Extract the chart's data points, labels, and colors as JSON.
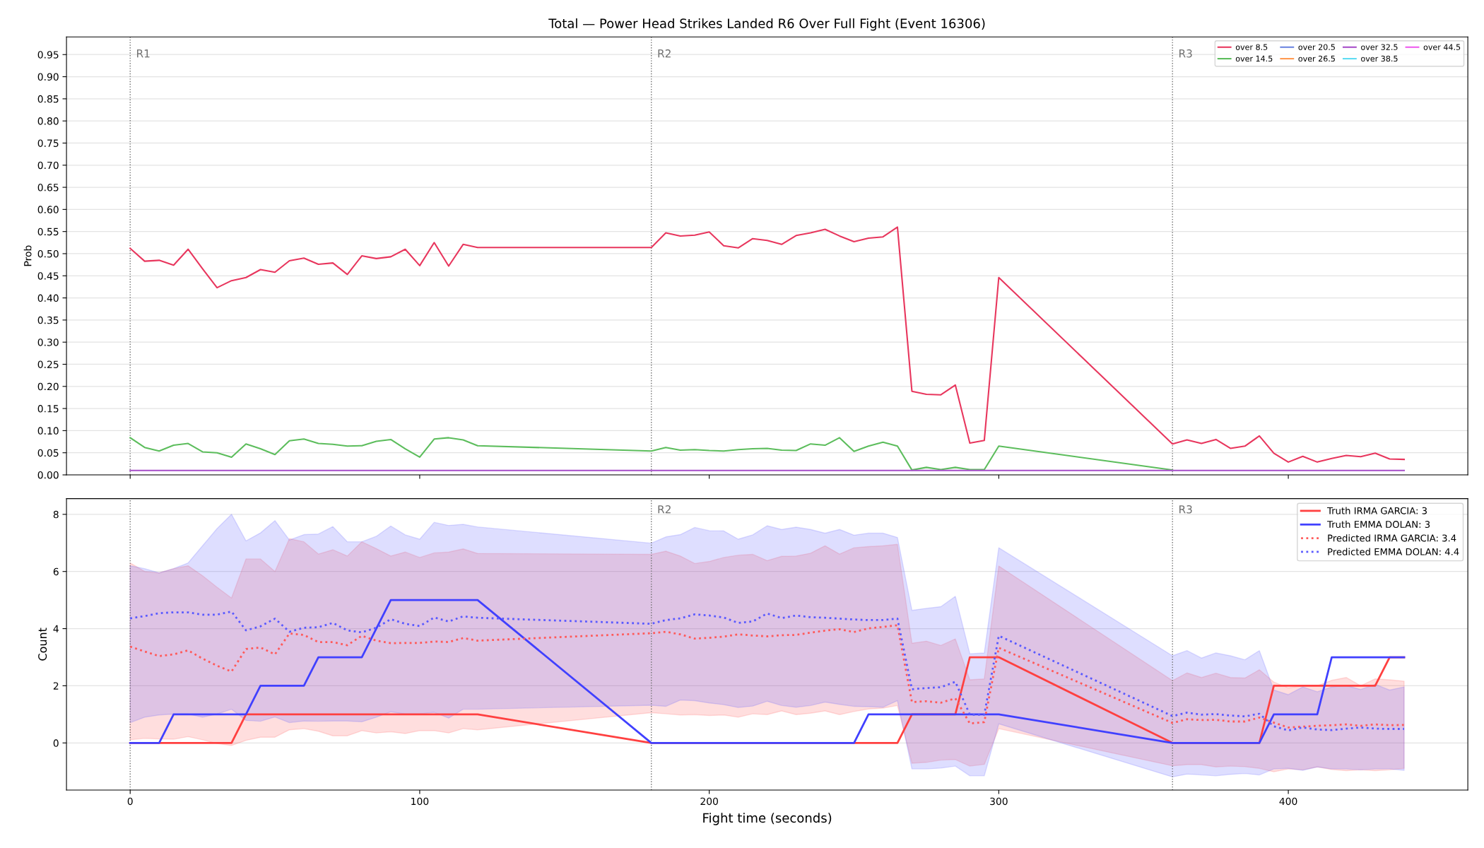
{
  "chart_data": [
    {
      "type": "line",
      "title": "Total — Power Head Strikes Landed R6 Over Full Fight (Event 16306)",
      "ylabel": "Prob",
      "x": [
        0,
        5,
        10,
        15,
        20,
        25,
        30,
        35,
        40,
        45,
        50,
        55,
        60,
        65,
        70,
        75,
        80,
        85,
        90,
        95,
        100,
        105,
        110,
        115,
        120,
        180,
        185,
        190,
        195,
        200,
        205,
        210,
        215,
        220,
        225,
        230,
        235,
        240,
        245,
        250,
        255,
        260,
        265,
        270,
        275,
        280,
        285,
        290,
        295,
        300,
        360,
        365,
        370,
        375,
        380,
        385,
        390,
        395,
        400,
        405,
        410,
        415,
        420,
        425,
        430,
        435,
        440
      ],
      "xlim": [
        -22,
        462
      ],
      "xticks": [
        0,
        100,
        200,
        300,
        400
      ],
      "ylim": [
        0,
        0.99
      ],
      "yticks": [
        {
          "value": 0.0,
          "label": "0.00"
        },
        {
          "value": 0.05,
          "label": "0.05"
        },
        {
          "value": 0.1,
          "label": "0.10"
        },
        {
          "value": 0.15,
          "label": "0.15"
        },
        {
          "value": 0.2,
          "label": "0.20"
        },
        {
          "value": 0.25,
          "label": "0.25"
        },
        {
          "value": 0.3,
          "label": "0.30"
        },
        {
          "value": 0.35,
          "label": "0.35"
        },
        {
          "value": 0.4,
          "label": "0.40"
        },
        {
          "value": 0.45,
          "label": "0.45"
        },
        {
          "value": 0.5,
          "label": "0.50"
        },
        {
          "value": 0.55,
          "label": "0.55"
        },
        {
          "value": 0.6,
          "label": "0.60"
        },
        {
          "value": 0.65,
          "label": "0.65"
        },
        {
          "value": 0.7,
          "label": "0.70"
        },
        {
          "value": 0.75,
          "label": "0.75"
        },
        {
          "value": 0.8,
          "label": "0.80"
        },
        {
          "value": 0.85,
          "label": "0.85"
        },
        {
          "value": 0.9,
          "label": "0.90"
        },
        {
          "value": 0.95,
          "label": "0.95"
        }
      ],
      "tick_labels": "y",
      "grid": "y",
      "legend": "top right",
      "series": [
        {
          "name": "over 8.5",
          "color": "#e8365d",
          "values": [
            0.512,
            0.483,
            0.485,
            0.474,
            0.51,
            0.466,
            0.423,
            0.439,
            0.446,
            0.464,
            0.458,
            0.484,
            0.49,
            0.476,
            0.479,
            0.453,
            0.495,
            0.489,
            0.493,
            0.51,
            0.473,
            0.525,
            0.472,
            0.521,
            0.514,
            0.514,
            0.547,
            0.54,
            0.542,
            0.549,
            0.518,
            0.513,
            0.534,
            0.53,
            0.521,
            0.541,
            0.547,
            0.555,
            0.54,
            0.527,
            0.535,
            0.538,
            0.56,
            0.189,
            0.182,
            0.181,
            0.203,
            0.072,
            0.078,
            0.446,
            0.07,
            0.079,
            0.071,
            0.08,
            0.06,
            0.065,
            0.088,
            0.049,
            0.029,
            0.042,
            0.029,
            0.037,
            0.044,
            0.041,
            0.049,
            0.036,
            0.035
          ]
        },
        {
          "name": "over 14.5",
          "color": "#5cbd5c",
          "values": [
            0.084,
            0.062,
            0.054,
            0.067,
            0.071,
            0.052,
            0.05,
            0.04,
            0.07,
            0.059,
            0.046,
            0.077,
            0.081,
            0.071,
            0.069,
            0.065,
            0.066,
            0.076,
            0.08,
            0.059,
            0.04,
            0.081,
            0.084,
            0.079,
            0.066,
            0.054,
            0.062,
            0.056,
            0.057,
            0.055,
            0.054,
            0.057,
            0.059,
            0.06,
            0.056,
            0.055,
            0.07,
            0.067,
            0.084,
            0.053,
            0.065,
            0.074,
            0.065,
            0.011,
            0.017,
            0.012,
            0.017,
            0.012,
            0.012,
            0.065,
            0.011,
            null,
            null,
            null,
            null,
            null,
            null,
            null,
            null,
            null,
            null,
            null,
            null,
            null,
            null,
            null,
            null
          ]
        },
        {
          "name": "over 20.5",
          "color": "#6a84e0",
          "values": [
            null,
            null,
            null,
            null,
            null,
            null,
            null,
            null,
            null,
            null,
            null,
            null,
            null,
            null,
            null,
            null,
            null,
            null,
            null,
            null,
            null,
            null,
            null,
            null,
            null,
            null,
            null,
            null,
            null,
            null,
            null,
            null,
            null,
            null,
            null,
            null,
            null,
            null,
            null,
            null,
            null,
            null,
            null,
            null,
            null,
            null,
            null,
            null,
            null,
            null,
            null,
            null,
            null,
            null,
            null,
            null,
            null,
            null,
            null,
            null,
            null,
            null,
            null,
            null,
            null,
            null,
            null
          ]
        },
        {
          "name": "over 26.5",
          "color": "#ff9a52",
          "values": [
            null,
            null,
            null,
            null,
            null,
            null,
            null,
            null,
            null,
            null,
            null,
            null,
            null,
            null,
            null,
            null,
            null,
            null,
            null,
            null,
            null,
            null,
            null,
            null,
            null,
            null,
            null,
            null,
            null,
            null,
            null,
            null,
            null,
            null,
            null,
            null,
            null,
            null,
            null,
            null,
            null,
            null,
            null,
            null,
            null,
            null,
            null,
            null,
            null,
            null,
            null,
            null,
            null,
            null,
            null,
            null,
            null,
            null,
            null,
            null,
            null,
            null,
            null,
            null,
            null,
            null,
            null
          ]
        },
        {
          "name": "over 32.5",
          "color": "#a64cc8",
          "values": [
            0.01,
            0.01,
            0.01,
            0.01,
            0.01,
            0.01,
            0.01,
            0.01,
            0.01,
            0.01,
            0.01,
            0.01,
            0.01,
            0.01,
            0.01,
            0.01,
            0.01,
            0.01,
            0.01,
            0.01,
            0.01,
            0.01,
            0.01,
            0.01,
            0.01,
            0.01,
            0.01,
            0.01,
            0.01,
            0.01,
            0.01,
            0.01,
            0.01,
            0.01,
            0.01,
            0.01,
            0.01,
            0.01,
            0.01,
            0.01,
            0.01,
            0.01,
            0.01,
            0.01,
            0.01,
            0.01,
            0.01,
            0.01,
            0.01,
            0.01,
            0.01,
            0.01,
            0.01,
            0.01,
            0.01,
            0.01,
            0.01,
            0.01,
            0.01,
            0.01,
            0.01,
            0.01,
            0.01,
            0.01,
            0.01,
            0.01,
            0.01
          ]
        },
        {
          "name": "over 38.5",
          "color": "#5fdcf2",
          "values": [
            null,
            null,
            null,
            null,
            null,
            null,
            null,
            null,
            null,
            null,
            null,
            null,
            null,
            null,
            null,
            null,
            null,
            null,
            null,
            null,
            null,
            null,
            null,
            null,
            null,
            null,
            null,
            null,
            null,
            null,
            null,
            null,
            null,
            null,
            null,
            null,
            null,
            null,
            null,
            null,
            null,
            null,
            null,
            null,
            null,
            null,
            null,
            null,
            null,
            null,
            null,
            null,
            null,
            null,
            null,
            null,
            null,
            null,
            null,
            null,
            null,
            null,
            null,
            null,
            null,
            null,
            null
          ]
        },
        {
          "name": "over 44.5",
          "color": "#ee5aee",
          "values": [
            null,
            null,
            null,
            null,
            null,
            null,
            null,
            null,
            null,
            null,
            null,
            null,
            null,
            null,
            null,
            null,
            null,
            null,
            null,
            null,
            null,
            null,
            null,
            null,
            null,
            null,
            null,
            null,
            null,
            null,
            null,
            null,
            null,
            null,
            null,
            null,
            null,
            null,
            null,
            null,
            null,
            null,
            null,
            null,
            null,
            null,
            null,
            null,
            null,
            null,
            null,
            null,
            null,
            null,
            null,
            null,
            null,
            null,
            null,
            null,
            null,
            null,
            null,
            null,
            null,
            null,
            null
          ]
        }
      ],
      "ref_lines": [
        {
          "axis": "x",
          "value": 0,
          "label": "R1",
          "color": "#707070",
          "line_style": "dotted"
        },
        {
          "axis": "x",
          "value": 180,
          "label": "R2",
          "color": "#707070",
          "line_style": "dotted"
        },
        {
          "axis": "x",
          "value": 360,
          "label": "R3",
          "color": "#707070",
          "line_style": "dotted"
        }
      ]
    },
    {
      "type": "line",
      "xlabel": "Fight time (seconds)",
      "ylabel": "Count",
      "x": [
        0,
        5,
        10,
        15,
        20,
        25,
        30,
        35,
        40,
        45,
        50,
        55,
        60,
        65,
        70,
        75,
        80,
        85,
        90,
        95,
        100,
        105,
        110,
        115,
        120,
        180,
        185,
        190,
        195,
        200,
        205,
        210,
        215,
        220,
        225,
        230,
        235,
        240,
        245,
        250,
        255,
        260,
        265,
        270,
        275,
        280,
        285,
        290,
        295,
        300,
        360,
        365,
        370,
        375,
        380,
        385,
        390,
        395,
        400,
        405,
        410,
        415,
        420,
        425,
        430,
        435,
        440
      ],
      "xlim": [
        -22,
        462
      ],
      "xticks": [
        0,
        100,
        200,
        300,
        400
      ],
      "ylim": [
        -1.65,
        8.55
      ],
      "yticks": [
        0,
        2,
        4,
        6,
        8
      ],
      "grid": "y",
      "legend": "top right",
      "series": [
        {
          "name": "Truth IRMA GARCIA: 3",
          "color": "#ff4040",
          "line_style": "solid",
          "values": [
            0,
            0,
            0,
            0,
            0,
            0,
            0,
            0,
            1,
            1,
            1,
            1,
            1,
            1,
            1,
            1,
            1,
            1,
            1,
            1,
            1,
            1,
            1,
            1,
            1,
            0,
            0,
            0,
            0,
            0,
            0,
            0,
            0,
            0,
            0,
            0,
            0,
            0,
            0,
            0,
            0,
            0,
            0,
            1,
            1,
            1,
            1,
            3,
            3,
            3,
            0,
            0,
            0,
            0,
            0,
            0,
            0,
            2,
            2,
            2,
            2,
            2,
            2,
            2,
            2,
            3,
            3
          ]
        },
        {
          "name": "Truth EMMA DOLAN: 3",
          "color": "#4040ff",
          "line_style": "solid",
          "values": [
            0,
            0,
            0,
            1,
            1,
            1,
            1,
            1,
            1,
            2,
            2,
            2,
            2,
            3,
            3,
            3,
            3,
            4,
            5,
            5,
            5,
            5,
            5,
            5,
            5,
            0,
            0,
            0,
            0,
            0,
            0,
            0,
            0,
            0,
            0,
            0,
            0,
            0,
            0,
            0,
            1,
            1,
            1,
            1,
            1,
            1,
            1,
            1,
            1,
            1,
            0,
            0,
            0,
            0,
            0,
            0,
            0,
            1,
            1,
            1,
            1,
            3,
            3,
            3,
            3,
            3,
            3
          ]
        },
        {
          "name": "Predicted IRMA GARCIA: 3.4",
          "color": "#ff5a5a",
          "line_style": "dotted",
          "values": [
            3.37,
            3.2,
            3.04,
            3.1,
            3.24,
            2.95,
            2.7,
            2.5,
            3.29,
            3.34,
            3.1,
            3.83,
            3.78,
            3.53,
            3.53,
            3.42,
            3.75,
            3.58,
            3.49,
            3.5,
            3.5,
            3.55,
            3.53,
            3.67,
            3.58,
            3.84,
            3.89,
            3.8,
            3.65,
            3.68,
            3.72,
            3.8,
            3.76,
            3.73,
            3.77,
            3.78,
            3.86,
            3.93,
            3.98,
            3.88,
            4.01,
            4.06,
            4.12,
            1.43,
            1.46,
            1.41,
            1.56,
            0.68,
            0.73,
            3.33,
            0.7,
            0.83,
            0.8,
            0.81,
            0.75,
            0.75,
            0.89,
            0.71,
            0.54,
            0.57,
            0.6,
            0.62,
            0.65,
            0.6,
            0.65,
            0.62,
            0.63
          ],
          "lower": [
            0.11,
            0.16,
            0.14,
            0.13,
            0.22,
            0.11,
            -0.02,
            -0.09,
            0.09,
            0.2,
            0.2,
            0.46,
            0.5,
            0.41,
            0.25,
            0.25,
            0.43,
            0.35,
            0.39,
            0.33,
            0.43,
            0.43,
            0.35,
            0.5,
            0.46,
            1.06,
            1.02,
            0.98,
            0.99,
            0.96,
            0.98,
            0.9,
            1.02,
            0.99,
            1.12,
            0.99,
            1.04,
            1.12,
            0.99,
            1.1,
            1.19,
            1.22,
            1.31,
            -0.71,
            -0.68,
            -0.6,
            -0.58,
            -0.81,
            -0.75,
            0.5,
            -0.8,
            -0.76,
            -0.76,
            -0.84,
            -0.81,
            -0.83,
            -0.89,
            -1.01,
            -0.91,
            -0.94,
            -0.84,
            -0.93,
            -0.97,
            -0.94,
            -0.97,
            -0.94,
            -0.89
          ],
          "upper": [
            6.3,
            6.0,
            5.95,
            6.1,
            6.2,
            5.85,
            5.45,
            5.07,
            6.44,
            6.44,
            6.0,
            7.15,
            7.04,
            6.61,
            6.76,
            6.54,
            7.04,
            6.8,
            6.54,
            6.68,
            6.49,
            6.65,
            6.68,
            6.79,
            6.63,
            6.6,
            6.71,
            6.54,
            6.28,
            6.35,
            6.49,
            6.57,
            6.6,
            6.38,
            6.53,
            6.54,
            6.64,
            6.9,
            6.61,
            6.83,
            6.87,
            6.9,
            6.95,
            3.49,
            3.56,
            3.41,
            3.64,
            2.21,
            2.24,
            6.19,
            2.18,
            2.45,
            2.29,
            2.44,
            2.29,
            2.27,
            2.56,
            2.13,
            1.93,
            2.0,
            2.0,
            2.19,
            2.29,
            2.0,
            2.24,
            2.21,
            2.16
          ]
        },
        {
          "name": "Predicted EMMA DOLAN: 4.4",
          "color": "#5a5aff",
          "line_style": "dotted",
          "values": [
            4.36,
            4.44,
            4.54,
            4.57,
            4.57,
            4.49,
            4.49,
            4.6,
            3.94,
            4.08,
            4.35,
            3.89,
            4.03,
            4.05,
            4.2,
            3.94,
            3.87,
            4.03,
            4.33,
            4.17,
            4.09,
            4.39,
            4.25,
            4.43,
            4.38,
            4.17,
            4.3,
            4.36,
            4.5,
            4.46,
            4.39,
            4.2,
            4.25,
            4.53,
            4.37,
            4.46,
            4.4,
            4.38,
            4.35,
            4.32,
            4.3,
            4.3,
            4.35,
            1.88,
            1.92,
            1.95,
            2.14,
            0.99,
            0.99,
            3.75,
            0.94,
            1.06,
            0.99,
            1.01,
            0.96,
            0.93,
            1.02,
            0.58,
            0.44,
            0.54,
            0.47,
            0.45,
            0.5,
            0.54,
            0.5,
            0.49,
            0.49
          ],
          "lower": [
            0.71,
            0.9,
            0.98,
            1.01,
            1.01,
            0.9,
            1.01,
            1.18,
            0.79,
            0.76,
            0.91,
            0.71,
            0.77,
            0.76,
            0.77,
            0.77,
            0.74,
            0.9,
            1.09,
            1.01,
            1.02,
            1.07,
            0.87,
            1.18,
            1.18,
            1.32,
            1.28,
            1.5,
            1.48,
            1.4,
            1.34,
            1.24,
            1.29,
            1.46,
            1.31,
            1.25,
            1.31,
            1.43,
            1.35,
            1.28,
            1.27,
            1.25,
            1.48,
            -0.91,
            -0.91,
            -0.88,
            -0.81,
            -1.15,
            -1.15,
            0.67,
            -1.19,
            -1.09,
            -1.12,
            -1.15,
            -1.1,
            -1.07,
            -1.12,
            -0.91,
            -0.89,
            -0.96,
            -0.84,
            -0.91,
            -0.91,
            -0.94,
            -0.91,
            -0.91,
            -0.96
          ],
          "upper": [
            6.2,
            6.1,
            5.95,
            6.1,
            6.3,
            6.9,
            7.5,
            8.0,
            7.07,
            7.35,
            7.78,
            7.1,
            7.29,
            7.31,
            7.57,
            7.04,
            7.04,
            7.23,
            7.59,
            7.28,
            7.13,
            7.72,
            7.61,
            7.65,
            7.56,
            6.99,
            7.21,
            7.29,
            7.54,
            7.43,
            7.42,
            7.13,
            7.28,
            7.6,
            7.47,
            7.55,
            7.47,
            7.34,
            7.47,
            7.27,
            7.34,
            7.34,
            7.19,
            4.64,
            4.71,
            4.77,
            5.13,
            3.12,
            3.15,
            6.83,
            3.05,
            3.23,
            2.97,
            3.15,
            3.05,
            2.91,
            3.23,
            1.85,
            1.69,
            1.96,
            1.79,
            1.96,
            2.01,
            1.87,
            2.05,
            1.85,
            1.96
          ]
        }
      ],
      "ref_lines": [
        {
          "axis": "x",
          "value": 0,
          "label": null,
          "color": "#707070",
          "line_style": "dotted"
        },
        {
          "axis": "x",
          "value": 180,
          "label": "R2",
          "color": "#707070",
          "line_style": "dotted"
        },
        {
          "axis": "x",
          "value": 360,
          "label": "R3",
          "color": "#707070",
          "line_style": "dotted"
        }
      ]
    }
  ]
}
